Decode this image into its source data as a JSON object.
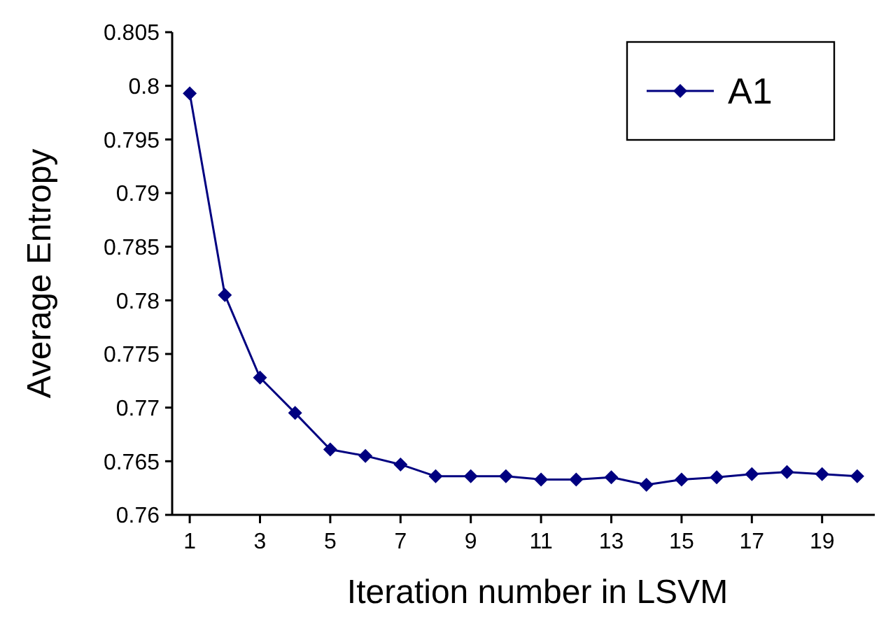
{
  "chart_data": {
    "type": "line",
    "xlabel": "Iteration number in LSVM",
    "ylabel": "Average Entropy",
    "x": [
      1,
      2,
      3,
      4,
      5,
      6,
      7,
      8,
      9,
      10,
      11,
      12,
      13,
      14,
      15,
      16,
      17,
      18,
      19,
      20
    ],
    "xlim": [
      0.5,
      20.5
    ],
    "xticks": [
      1,
      3,
      5,
      7,
      9,
      11,
      13,
      15,
      17,
      19
    ],
    "series": [
      {
        "name": "A1",
        "color": "#000080",
        "values": [
          0.7993,
          0.7805,
          0.7728,
          0.7695,
          0.7661,
          0.7655,
          0.7647,
          0.7636,
          0.7636,
          0.7636,
          0.7633,
          0.7633,
          0.7635,
          0.7628,
          0.7633,
          0.7635,
          0.7638,
          0.764,
          0.7638,
          0.7636
        ]
      }
    ],
    "ylim": [
      0.76,
      0.805
    ],
    "yticks": [
      0.76,
      0.765,
      0.77,
      0.775,
      0.78,
      0.785,
      0.79,
      0.795,
      0.8,
      0.805
    ],
    "grid": false,
    "legend": "top right",
    "marker": "diamond",
    "line_style": "solid"
  }
}
